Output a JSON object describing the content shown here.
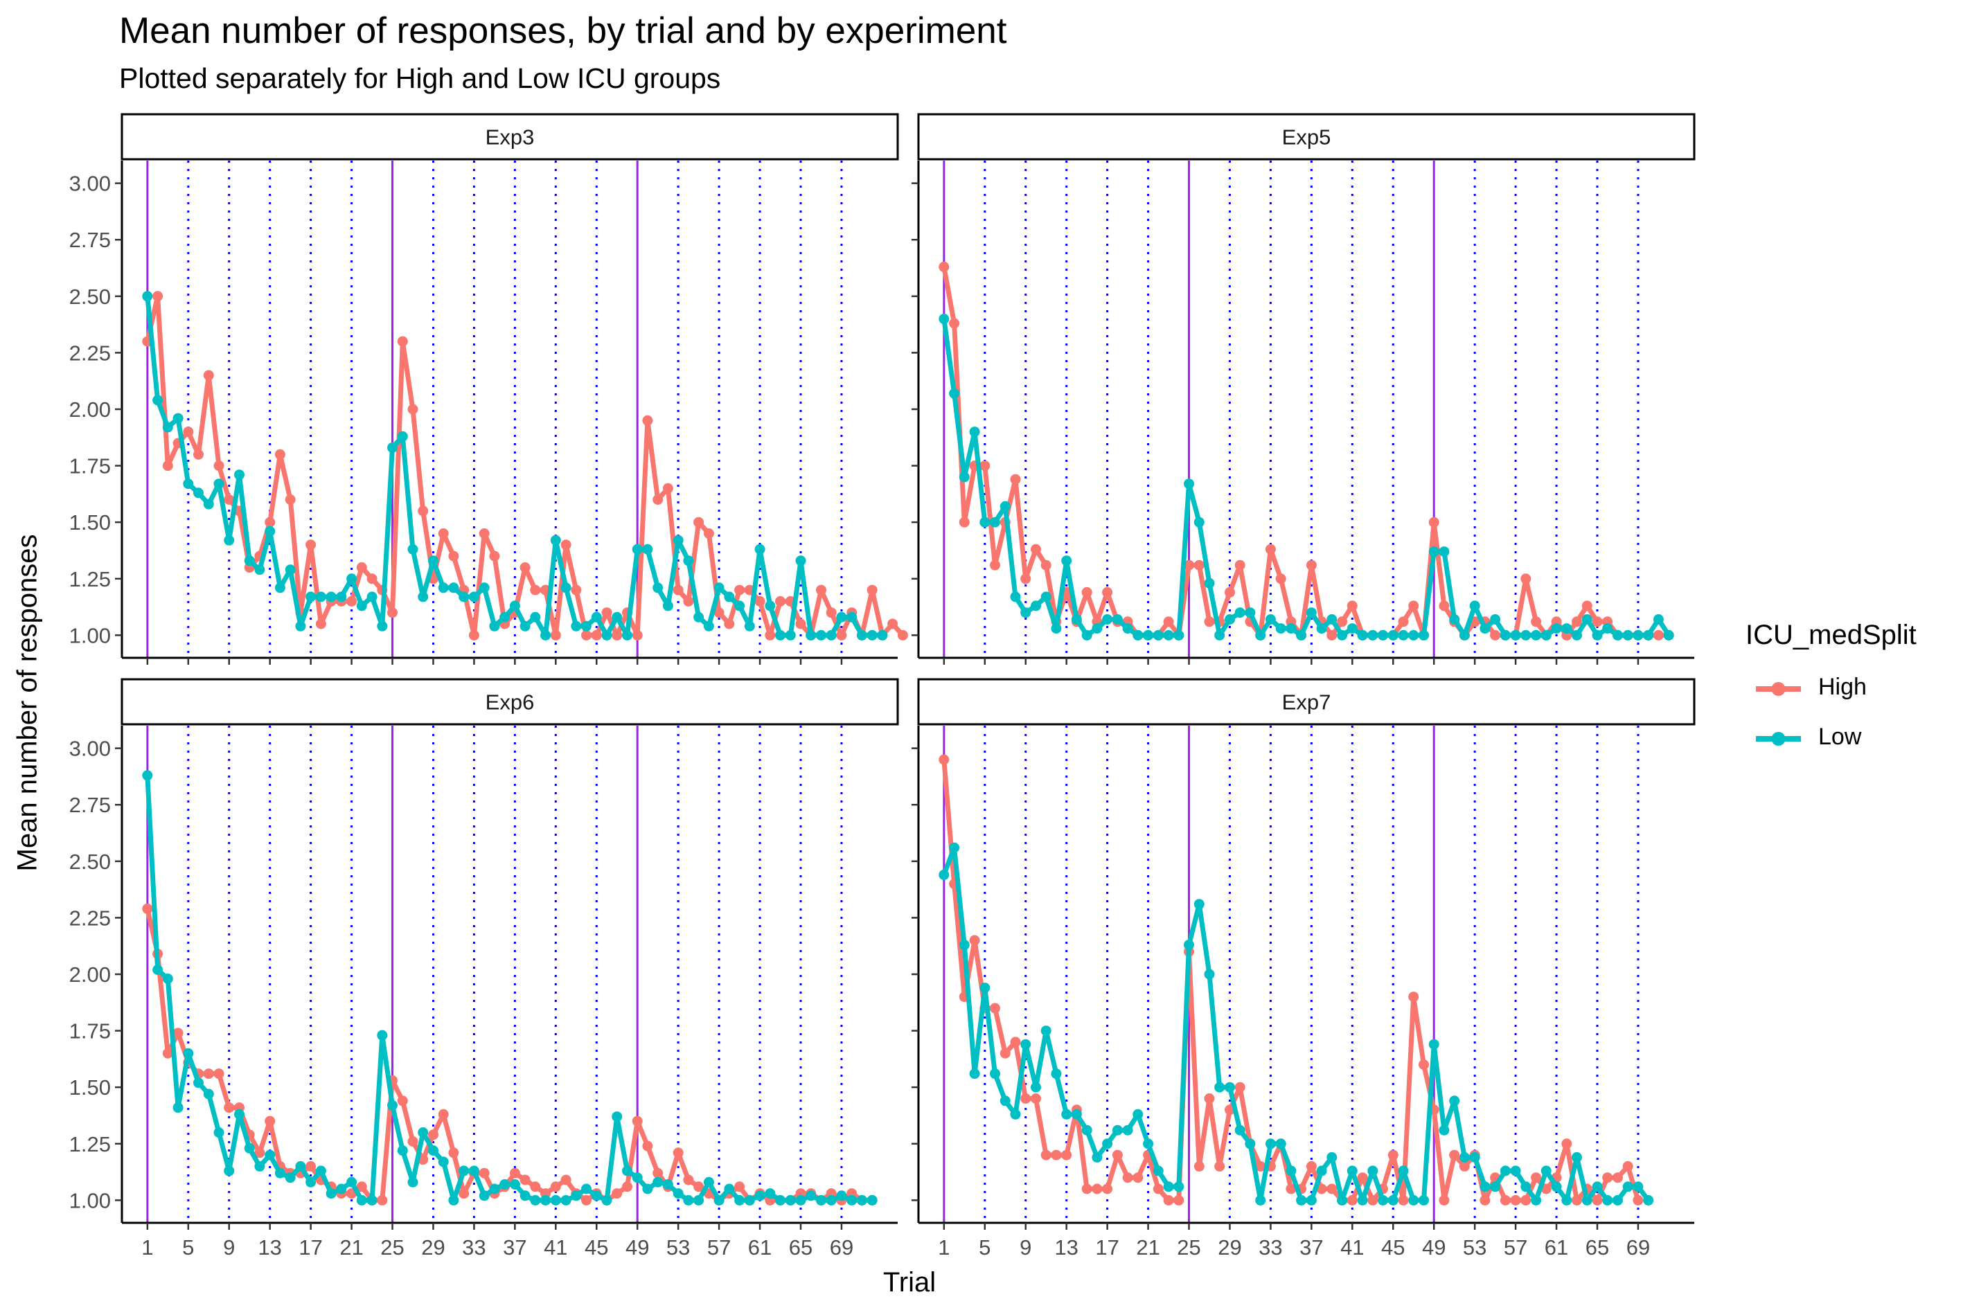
{
  "title": "Mean number of responses, by trial and by experiment",
  "subtitle": "Plotted separately for High and Low ICU groups",
  "colors": {
    "High": "#F8766D",
    "Low": "#00BFC4",
    "solid_vline": "#A020F0",
    "dotted_vline": "#0000FF"
  },
  "chart_data": {
    "type": "line",
    "title": "Mean number of responses, by trial and by experiment",
    "subtitle": "Plotted separately for High and Low ICU groups",
    "xlabel": "Trial",
    "ylabel": "Mean number of responses",
    "xlim": [
      -1.5,
      74.5
    ],
    "ylim": [
      0.9,
      3.1
    ],
    "x_ticks": [
      1,
      5,
      9,
      13,
      17,
      21,
      25,
      29,
      33,
      37,
      41,
      45,
      49,
      53,
      57,
      61,
      65,
      69
    ],
    "y_ticks": [
      1.0,
      1.25,
      1.5,
      1.75,
      2.0,
      2.25,
      2.5,
      2.75,
      3.0
    ],
    "y_tick_labels": [
      "1.00",
      "1.25",
      "1.50",
      "1.75",
      "2.00",
      "2.25",
      "2.50",
      "2.75",
      "3.00"
    ],
    "solid_vlines": [
      1,
      25,
      49
    ],
    "dotted_vlines": [
      5,
      9,
      13,
      17,
      21,
      29,
      33,
      37,
      41,
      45,
      53,
      57,
      61,
      65,
      69
    ],
    "grid": false,
    "legend": {
      "title": "ICU_medSplit",
      "placement": "right",
      "entries": [
        "High",
        "Low"
      ]
    },
    "facets": [
      {
        "name": "Exp3",
        "series": [
          {
            "name": "High",
            "values": [
              2.3,
              2.5,
              1.75,
              1.85,
              1.9,
              1.8,
              2.15,
              1.75,
              1.6,
              1.55,
              1.3,
              1.35,
              1.5,
              1.8,
              1.6,
              1.1,
              1.4,
              1.05,
              1.15,
              1.15,
              1.15,
              1.3,
              1.25,
              1.2,
              1.1,
              2.3,
              2.0,
              1.55,
              1.25,
              1.45,
              1.35,
              1.2,
              1.0,
              1.45,
              1.35,
              1.05,
              1.1,
              1.3,
              1.2,
              1.2,
              1.0,
              1.4,
              1.2,
              1.0,
              1.0,
              1.1,
              1.0,
              1.1,
              1.0,
              1.95,
              1.6,
              1.65,
              1.2,
              1.15,
              1.5,
              1.45,
              1.1,
              1.05,
              1.2,
              1.2,
              1.15,
              1.0,
              1.15,
              1.15,
              1.05,
              1.0,
              1.2,
              1.1,
              1.0,
              1.1,
              1.0,
              1.2,
              1.0,
              1.05,
              1.0
            ]
          },
          {
            "name": "Low",
            "values": [
              2.5,
              2.04,
              1.92,
              1.96,
              1.67,
              1.63,
              1.58,
              1.67,
              1.42,
              1.71,
              1.33,
              1.29,
              1.46,
              1.21,
              1.29,
              1.04,
              1.17,
              1.17,
              1.17,
              1.17,
              1.25,
              1.13,
              1.17,
              1.04,
              1.83,
              1.88,
              1.38,
              1.17,
              1.33,
              1.21,
              1.21,
              1.17,
              1.17,
              1.21,
              1.04,
              1.08,
              1.13,
              1.04,
              1.08,
              1.0,
              1.42,
              1.21,
              1.04,
              1.04,
              1.08,
              1.0,
              1.08,
              1.0,
              1.38,
              1.38,
              1.21,
              1.13,
              1.42,
              1.33,
              1.08,
              1.04,
              1.21,
              1.17,
              1.13,
              1.04,
              1.38,
              1.13,
              1.0,
              1.0,
              1.33,
              1.0,
              1.0,
              1.0,
              1.08,
              1.08,
              1.0,
              1.0,
              1.0
            ]
          }
        ]
      },
      {
        "name": "Exp5",
        "series": [
          {
            "name": "High",
            "values": [
              2.63,
              2.38,
              1.5,
              1.75,
              1.75,
              1.31,
              1.5,
              1.69,
              1.25,
              1.38,
              1.31,
              1.06,
              1.19,
              1.06,
              1.19,
              1.06,
              1.19,
              1.06,
              1.06,
              1.0,
              1.0,
              1.0,
              1.06,
              1.0,
              1.31,
              1.31,
              1.06,
              1.06,
              1.19,
              1.31,
              1.06,
              1.0,
              1.38,
              1.25,
              1.06,
              1.0,
              1.31,
              1.06,
              1.0,
              1.06,
              1.13,
              1.0,
              1.0,
              1.0,
              1.0,
              1.06,
              1.13,
              1.0,
              1.5,
              1.13,
              1.06,
              1.0,
              1.06,
              1.06,
              1.0,
              1.0,
              1.0,
              1.25,
              1.06,
              1.0,
              1.06,
              1.0,
              1.06,
              1.13,
              1.06,
              1.06,
              1.0,
              1.0,
              1.0,
              1.0,
              1.0,
              1.0
            ]
          },
          {
            "name": "Low",
            "values": [
              2.4,
              2.07,
              1.7,
              1.9,
              1.5,
              1.5,
              1.57,
              1.17,
              1.1,
              1.13,
              1.17,
              1.03,
              1.33,
              1.07,
              1.0,
              1.03,
              1.07,
              1.07,
              1.03,
              1.0,
              1.0,
              1.0,
              1.0,
              1.0,
              1.67,
              1.5,
              1.23,
              1.0,
              1.07,
              1.1,
              1.1,
              1.0,
              1.07,
              1.03,
              1.03,
              1.0,
              1.1,
              1.03,
              1.07,
              1.0,
              1.03,
              1.0,
              1.0,
              1.0,
              1.0,
              1.0,
              1.0,
              1.0,
              1.37,
              1.37,
              1.07,
              1.0,
              1.13,
              1.03,
              1.07,
              1.0,
              1.0,
              1.0,
              1.0,
              1.0,
              1.03,
              1.03,
              1.0,
              1.07,
              1.0,
              1.03,
              1.0,
              1.0,
              1.0,
              1.0,
              1.07,
              1.0
            ]
          }
        ]
      },
      {
        "name": "Exp6",
        "series": [
          {
            "name": "High",
            "values": [
              2.29,
              2.09,
              1.65,
              1.74,
              1.61,
              1.56,
              1.56,
              1.56,
              1.41,
              1.41,
              1.29,
              1.21,
              1.35,
              1.15,
              1.12,
              1.12,
              1.15,
              1.09,
              1.06,
              1.03,
              1.03,
              1.06,
              1.0,
              1.0,
              1.53,
              1.44,
              1.26,
              1.18,
              1.29,
              1.38,
              1.21,
              1.03,
              1.12,
              1.12,
              1.03,
              1.06,
              1.12,
              1.09,
              1.06,
              1.03,
              1.06,
              1.09,
              1.03,
              1.0,
              1.03,
              1.0,
              1.03,
              1.06,
              1.35,
              1.24,
              1.12,
              1.06,
              1.21,
              1.09,
              1.06,
              1.03,
              1.0,
              1.03,
              1.06,
              1.0,
              1.03,
              1.0,
              1.0,
              1.0,
              1.03,
              1.03,
              1.0,
              1.03,
              1.0,
              1.03,
              1.0,
              1.0
            ]
          },
          {
            "name": "Low",
            "values": [
              2.88,
              2.02,
              1.98,
              1.41,
              1.65,
              1.52,
              1.47,
              1.3,
              1.13,
              1.38,
              1.23,
              1.15,
              1.2,
              1.12,
              1.1,
              1.15,
              1.08,
              1.13,
              1.03,
              1.05,
              1.08,
              1.0,
              1.0,
              1.73,
              1.42,
              1.22,
              1.08,
              1.3,
              1.22,
              1.17,
              1.0,
              1.13,
              1.13,
              1.02,
              1.05,
              1.07,
              1.07,
              1.02,
              1.0,
              1.0,
              1.0,
              1.0,
              1.02,
              1.05,
              1.02,
              1.0,
              1.37,
              1.13,
              1.1,
              1.05,
              1.08,
              1.07,
              1.03,
              1.0,
              1.0,
              1.08,
              1.0,
              1.05,
              1.0,
              1.0,
              1.02,
              1.03,
              1.0,
              1.0,
              1.0,
              1.02,
              1.0,
              1.0,
              1.02,
              1.0,
              1.0,
              1.0
            ]
          }
        ]
      },
      {
        "name": "Exp7",
        "series": [
          {
            "name": "High",
            "values": [
              2.95,
              2.4,
              1.9,
              2.15,
              1.85,
              1.85,
              1.65,
              1.7,
              1.45,
              1.45,
              1.2,
              1.2,
              1.2,
              1.4,
              1.05,
              1.05,
              1.05,
              1.2,
              1.1,
              1.1,
              1.2,
              1.05,
              1.0,
              1.0,
              2.1,
              1.15,
              1.45,
              1.15,
              1.4,
              1.5,
              1.25,
              1.15,
              1.15,
              1.25,
              1.05,
              1.05,
              1.15,
              1.05,
              1.05,
              1.0,
              1.0,
              1.1,
              1.0,
              1.05,
              1.2,
              1.0,
              1.9,
              1.6,
              1.4,
              1.0,
              1.2,
              1.15,
              1.2,
              1.0,
              1.1,
              1.0,
              1.0,
              1.0,
              1.1,
              1.05,
              1.1,
              1.25,
              1.0,
              1.05,
              1.0,
              1.1,
              1.1,
              1.15,
              1.0
            ]
          },
          {
            "name": "Low",
            "values": [
              2.44,
              2.56,
              2.13,
              1.56,
              1.94,
              1.56,
              1.44,
              1.38,
              1.69,
              1.5,
              1.75,
              1.56,
              1.38,
              1.38,
              1.31,
              1.19,
              1.25,
              1.31,
              1.31,
              1.38,
              1.25,
              1.13,
              1.06,
              1.06,
              2.13,
              2.31,
              2.0,
              1.5,
              1.5,
              1.31,
              1.25,
              1.0,
              1.25,
              1.25,
              1.13,
              1.0,
              1.0,
              1.13,
              1.19,
              1.0,
              1.13,
              1.0,
              1.13,
              1.0,
              1.0,
              1.13,
              1.0,
              1.0,
              1.69,
              1.31,
              1.44,
              1.19,
              1.19,
              1.06,
              1.06,
              1.13,
              1.13,
              1.06,
              1.0,
              1.13,
              1.06,
              1.0,
              1.19,
              1.0,
              1.06,
              1.0,
              1.0,
              1.06,
              1.06,
              1.0
            ]
          }
        ]
      }
    ]
  }
}
